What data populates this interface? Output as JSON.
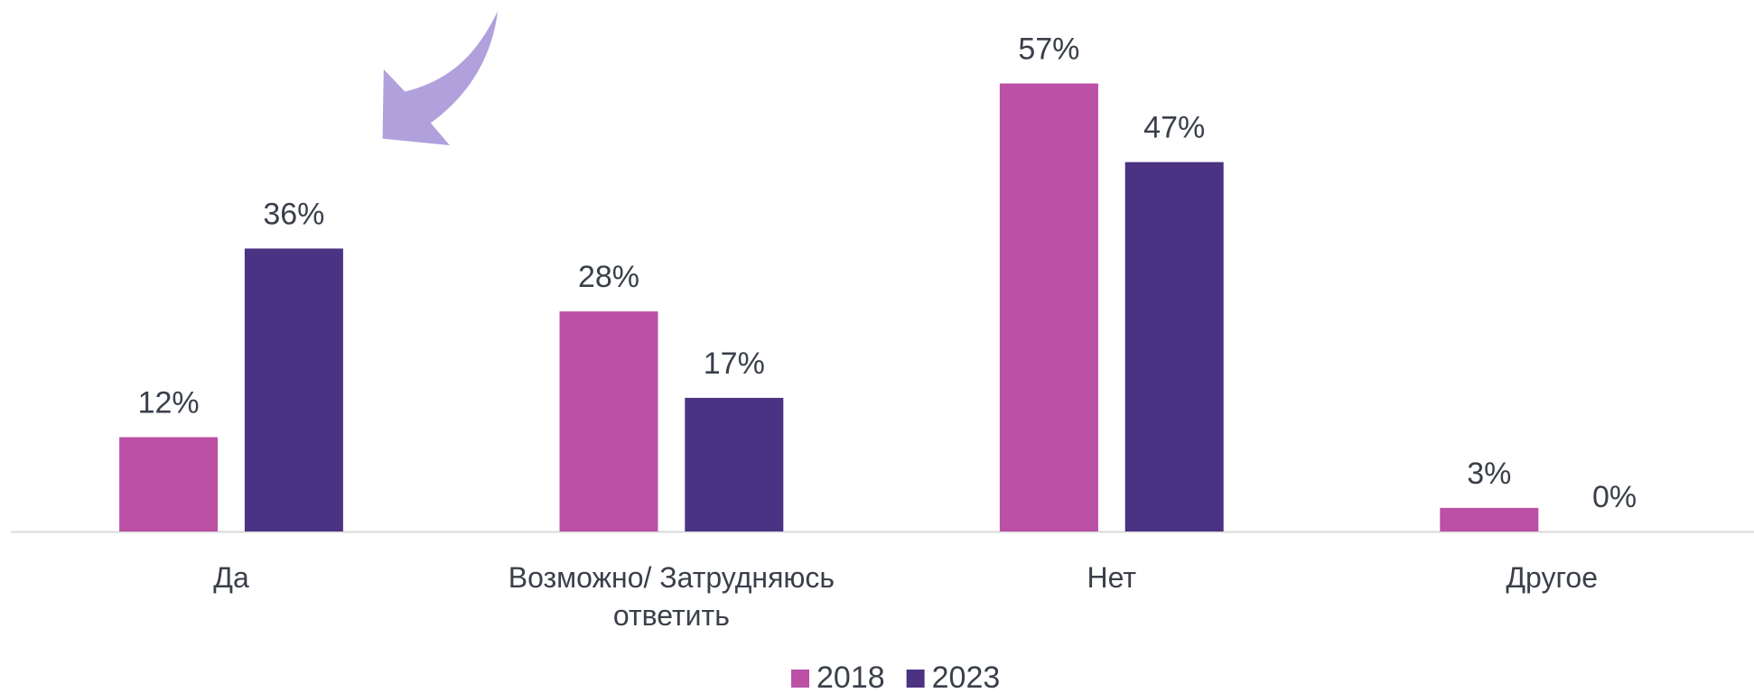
{
  "chart_data": {
    "type": "bar",
    "categories": [
      "Да",
      "Возможно/ Затрудняюсь ответить",
      "Нет",
      "Другое"
    ],
    "series": [
      {
        "name": "2018",
        "color": "#bb50a5",
        "values": [
          12,
          28,
          57,
          3
        ],
        "value_labels": [
          "12%",
          "28%",
          "57%",
          "3%"
        ]
      },
      {
        "name": "2023",
        "color": "#4b3283",
        "values": [
          36,
          17,
          47,
          0
        ],
        "value_labels": [
          "36%",
          "17%",
          "47%",
          "0%"
        ]
      }
    ]
  }
}
